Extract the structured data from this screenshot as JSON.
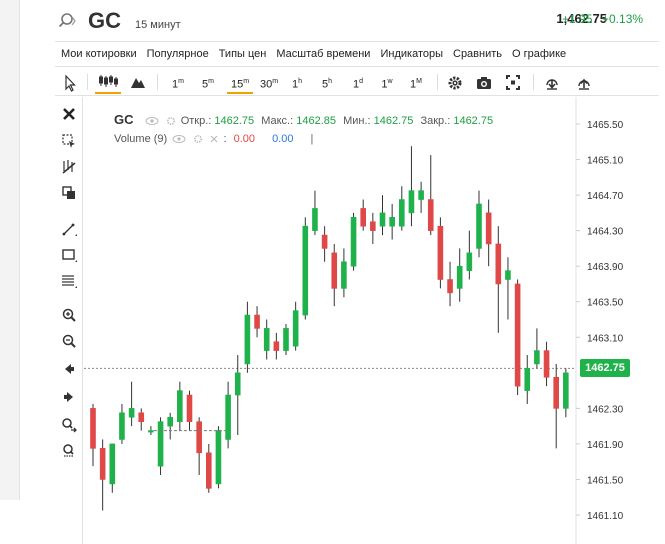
{
  "header": {
    "symbol": "GC",
    "timeframe": "15 минут",
    "last_price": "1,462.75",
    "change_abs": "+1.95",
    "change_pct": "+0.13%"
  },
  "menu": [
    "Мои котировки",
    "Популярное",
    "Типы цен",
    "Масштаб времени",
    "Индикаторы",
    "Сравнить",
    "О графике"
  ],
  "toolbar": {
    "intervals": [
      "1m",
      "5m",
      "15m",
      "30m",
      "1h",
      "5h",
      "1d",
      "1w",
      "1M"
    ],
    "active_interval": "15m"
  },
  "legend": {
    "symbol": "GC",
    "open_label": "Откр.:",
    "open": "1462.75",
    "high_label": "Макс.:",
    "high": "1462.85",
    "low_label": "Мин.:",
    "low": "1462.75",
    "close_label": "Закр.:",
    "close": "1462.75",
    "volume_label": "Volume (9)",
    "volume_dash": ":",
    "volume_val1": "0.00",
    "volume_val2": "0.00",
    "volume_sep": "|"
  },
  "price_axis": [
    "1465.50",
    "1465.10",
    "1464.70",
    "1464.30",
    "1463.90",
    "1463.50",
    "1463.10",
    "1462.30",
    "1461.90",
    "1461.50",
    "1461.10"
  ],
  "current_price_tag": "1462.75",
  "colors": {
    "up": "#1fb24b",
    "down": "#e04848",
    "accent": "#f2a100"
  },
  "chart_data": {
    "type": "candlestick",
    "ylim": [
      1460.9,
      1465.7
    ],
    "candles": [
      {
        "o": 1462.3,
        "h": 1462.35,
        "l": 1461.65,
        "c": 1461.85
      },
      {
        "o": 1461.85,
        "h": 1461.95,
        "l": 1461.15,
        "c": 1461.5
      },
      {
        "o": 1461.45,
        "h": 1461.9,
        "l": 1461.35,
        "c": 1461.9
      },
      {
        "o": 1461.95,
        "h": 1462.35,
        "l": 1461.9,
        "c": 1462.25
      },
      {
        "o": 1462.2,
        "h": 1462.6,
        "l": 1462.1,
        "c": 1462.3
      },
      {
        "o": 1462.25,
        "h": 1462.3,
        "l": 1462.05,
        "c": 1462.15
      },
      {
        "o": 1462.05,
        "h": 1462.1,
        "l": 1462.0,
        "c": 1462.05
      },
      {
        "o": 1461.65,
        "h": 1462.2,
        "l": 1461.55,
        "c": 1462.15
      },
      {
        "o": 1462.1,
        "h": 1462.25,
        "l": 1461.95,
        "c": 1462.2
      },
      {
        "o": 1462.15,
        "h": 1462.6,
        "l": 1462.05,
        "c": 1462.5
      },
      {
        "o": 1462.45,
        "h": 1462.5,
        "l": 1462.05,
        "c": 1462.15
      },
      {
        "o": 1462.15,
        "h": 1462.2,
        "l": 1461.55,
        "c": 1461.8
      },
      {
        "o": 1461.8,
        "h": 1461.9,
        "l": 1461.35,
        "c": 1461.4
      },
      {
        "o": 1461.45,
        "h": 1462.1,
        "l": 1461.4,
        "c": 1462.05
      },
      {
        "o": 1461.95,
        "h": 1462.6,
        "l": 1461.85,
        "c": 1462.45
      },
      {
        "o": 1462.45,
        "h": 1462.9,
        "l": 1462.0,
        "c": 1462.7
      },
      {
        "o": 1462.8,
        "h": 1463.5,
        "l": 1462.7,
        "c": 1463.35
      },
      {
        "o": 1463.35,
        "h": 1463.45,
        "l": 1463.1,
        "c": 1463.2
      },
      {
        "o": 1462.95,
        "h": 1463.3,
        "l": 1462.85,
        "c": 1463.2
      },
      {
        "o": 1463.05,
        "h": 1463.15,
        "l": 1462.85,
        "c": 1462.95
      },
      {
        "o": 1462.95,
        "h": 1463.25,
        "l": 1462.9,
        "c": 1463.2
      },
      {
        "o": 1463.0,
        "h": 1463.5,
        "l": 1462.95,
        "c": 1463.4
      },
      {
        "o": 1463.35,
        "h": 1464.45,
        "l": 1463.3,
        "c": 1464.35
      },
      {
        "o": 1464.3,
        "h": 1464.75,
        "l": 1464.25,
        "c": 1464.55
      },
      {
        "o": 1464.25,
        "h": 1464.35,
        "l": 1463.95,
        "c": 1464.1
      },
      {
        "o": 1464.05,
        "h": 1464.15,
        "l": 1463.45,
        "c": 1463.65
      },
      {
        "o": 1463.65,
        "h": 1464.1,
        "l": 1463.55,
        "c": 1463.95
      },
      {
        "o": 1463.9,
        "h": 1464.5,
        "l": 1463.85,
        "c": 1464.45
      },
      {
        "o": 1464.55,
        "h": 1464.65,
        "l": 1464.3,
        "c": 1464.35
      },
      {
        "o": 1464.4,
        "h": 1464.5,
        "l": 1464.15,
        "c": 1464.3
      },
      {
        "o": 1464.35,
        "h": 1464.7,
        "l": 1464.25,
        "c": 1464.5
      },
      {
        "o": 1464.35,
        "h": 1464.6,
        "l": 1464.2,
        "c": 1464.45
      },
      {
        "o": 1464.35,
        "h": 1464.8,
        "l": 1464.3,
        "c": 1464.65
      },
      {
        "o": 1464.5,
        "h": 1465.25,
        "l": 1464.35,
        "c": 1464.75
      },
      {
        "o": 1464.65,
        "h": 1464.85,
        "l": 1464.5,
        "c": 1464.75
      },
      {
        "o": 1464.65,
        "h": 1465.15,
        "l": 1464.25,
        "c": 1464.3
      },
      {
        "o": 1464.35,
        "h": 1464.45,
        "l": 1463.65,
        "c": 1463.75
      },
      {
        "o": 1463.75,
        "h": 1463.95,
        "l": 1463.45,
        "c": 1463.6
      },
      {
        "o": 1463.65,
        "h": 1464.1,
        "l": 1463.5,
        "c": 1463.9
      },
      {
        "o": 1463.85,
        "h": 1464.3,
        "l": 1463.75,
        "c": 1464.05
      },
      {
        "o": 1464.1,
        "h": 1464.75,
        "l": 1464.0,
        "c": 1464.6
      },
      {
        "o": 1464.5,
        "h": 1464.65,
        "l": 1463.9,
        "c": 1464.15
      },
      {
        "o": 1464.15,
        "h": 1464.35,
        "l": 1463.15,
        "c": 1463.7
      },
      {
        "o": 1463.75,
        "h": 1464.0,
        "l": 1463.3,
        "c": 1463.85
      },
      {
        "o": 1463.7,
        "h": 1463.75,
        "l": 1462.45,
        "c": 1462.55
      },
      {
        "o": 1462.5,
        "h": 1462.9,
        "l": 1462.35,
        "c": 1462.75
      },
      {
        "o": 1462.8,
        "h": 1463.2,
        "l": 1462.75,
        "c": 1462.95
      },
      {
        "o": 1462.95,
        "h": 1463.05,
        "l": 1462.55,
        "c": 1462.65
      },
      {
        "o": 1462.65,
        "h": 1462.8,
        "l": 1461.85,
        "c": 1462.3
      },
      {
        "o": 1462.3,
        "h": 1462.75,
        "l": 1462.2,
        "c": 1462.7
      }
    ],
    "flat_line_price": 1462.05,
    "current_price": 1462.75
  }
}
